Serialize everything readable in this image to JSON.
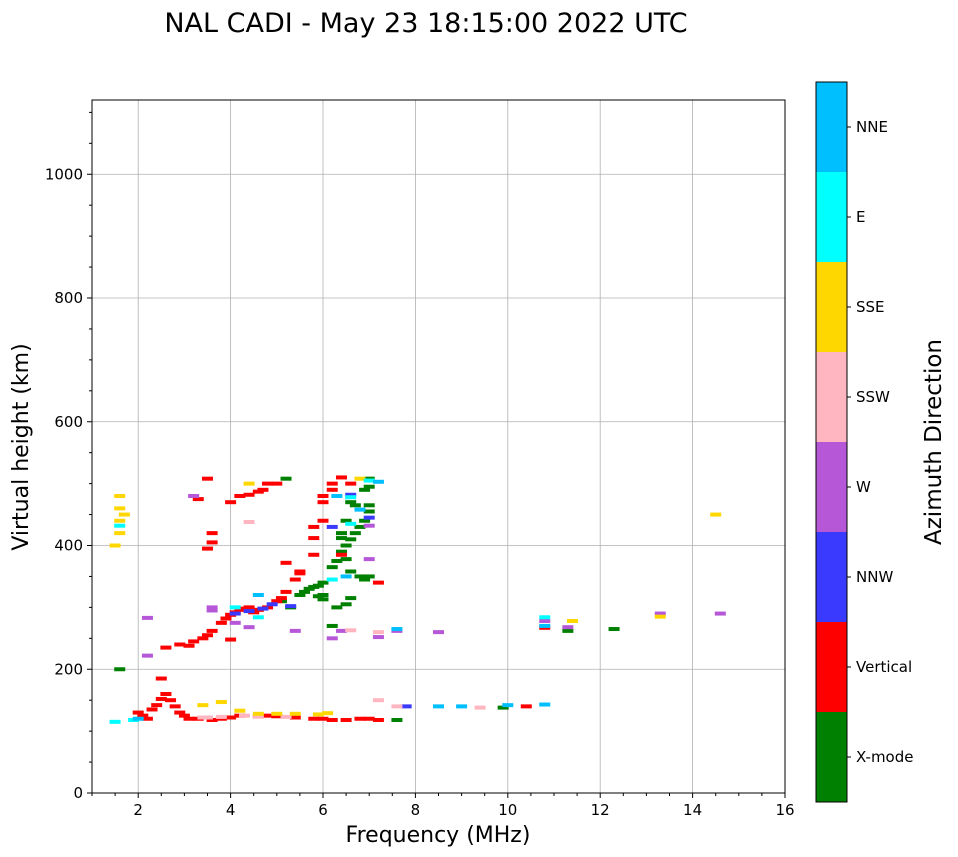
{
  "chart_data": {
    "type": "scatter",
    "title": "NAL CADI - May 23 18:15:00 2022 UTC",
    "xlabel": "Frequency (MHz)",
    "ylabel": "Virtual height (km)",
    "xlim": [
      1,
      16
    ],
    "ylim": [
      0,
      1120
    ],
    "xticks": [
      2,
      4,
      6,
      8,
      10,
      12,
      14,
      16
    ],
    "yticks": [
      0,
      200,
      400,
      600,
      800,
      1000
    ],
    "grid": true,
    "colorbar": {
      "title": "Azimuth Direction",
      "categories": [
        "X-mode",
        "Vertical",
        "NNW",
        "W",
        "SSW",
        "SSE",
        "E",
        "NNE"
      ],
      "colors": [
        "#008000",
        "#ff0000",
        "#3a3aff",
        "#b657d8",
        "#ffb6c1",
        "#ffd700",
        "#00ffff",
        "#00bfff"
      ]
    },
    "series": [
      {
        "name": "X-mode",
        "points": [
          [
            1.6,
            200
          ],
          [
            5.2,
            508
          ],
          [
            5.5,
            320
          ],
          [
            5.6,
            325
          ],
          [
            5.7,
            330
          ],
          [
            5.8,
            333
          ],
          [
            5.9,
            335
          ],
          [
            6.0,
            340
          ],
          [
            5.3,
            300
          ],
          [
            5.1,
            310
          ],
          [
            6.2,
            365
          ],
          [
            6.3,
            375
          ],
          [
            6.4,
            390
          ],
          [
            6.5,
            400
          ],
          [
            6.6,
            410
          ],
          [
            6.7,
            420
          ],
          [
            6.8,
            430
          ],
          [
            6.9,
            440
          ],
          [
            7.0,
            455
          ],
          [
            6.9,
            490
          ],
          [
            7.0,
            495
          ],
          [
            7.0,
            508
          ],
          [
            6.6,
            470
          ],
          [
            6.5,
            440
          ],
          [
            6.4,
            420
          ],
          [
            6.3,
            300
          ],
          [
            6.5,
            305
          ],
          [
            6.6,
            315
          ],
          [
            6.8,
            350
          ],
          [
            6.9,
            345
          ],
          [
            7.6,
            118
          ],
          [
            7.0,
            350
          ],
          [
            6.2,
            270
          ],
          [
            6.0,
            320
          ],
          [
            5.9,
            318
          ],
          [
            6.6,
            358
          ],
          [
            6.5,
            378
          ],
          [
            6.4,
            412
          ],
          [
            7.0,
            465
          ],
          [
            6.7,
            465
          ],
          [
            9.9,
            138
          ],
          [
            11.3,
            262
          ],
          [
            12.3,
            265
          ],
          [
            6.0,
            313
          ]
        ]
      },
      {
        "name": "Vertical",
        "points": [
          [
            2.0,
            130
          ],
          [
            2.1,
            125
          ],
          [
            2.2,
            120
          ],
          [
            2.3,
            135
          ],
          [
            2.4,
            142
          ],
          [
            2.5,
            152
          ],
          [
            2.6,
            160
          ],
          [
            2.7,
            150
          ],
          [
            2.8,
            140
          ],
          [
            2.9,
            130
          ],
          [
            3.0,
            125
          ],
          [
            3.1,
            120
          ],
          [
            3.3,
            120
          ],
          [
            3.6,
            118
          ],
          [
            3.8,
            120
          ],
          [
            4.0,
            122
          ],
          [
            4.2,
            125
          ],
          [
            4.6,
            124
          ],
          [
            4.8,
            125
          ],
          [
            5.0,
            124
          ],
          [
            5.4,
            122
          ],
          [
            5.8,
            120
          ],
          [
            6.0,
            120
          ],
          [
            6.2,
            118
          ],
          [
            6.5,
            118
          ],
          [
            6.8,
            120
          ],
          [
            7.0,
            120
          ],
          [
            7.2,
            118
          ],
          [
            2.5,
            185
          ],
          [
            2.6,
            235
          ],
          [
            2.9,
            240
          ],
          [
            3.1,
            238
          ],
          [
            3.2,
            245
          ],
          [
            3.4,
            250
          ],
          [
            3.5,
            255
          ],
          [
            3.6,
            262
          ],
          [
            3.8,
            275
          ],
          [
            3.9,
            282
          ],
          [
            4.0,
            288
          ],
          [
            4.1,
            292
          ],
          [
            4.2,
            296
          ],
          [
            4.3,
            298
          ],
          [
            4.4,
            300
          ],
          [
            4.5,
            292
          ],
          [
            4.6,
            296
          ],
          [
            4.8,
            300
          ],
          [
            5.0,
            310
          ],
          [
            5.1,
            315
          ],
          [
            5.2,
            325
          ],
          [
            5.4,
            345
          ],
          [
            5.2,
            372
          ],
          [
            5.5,
            358
          ],
          [
            5.8,
            385
          ],
          [
            5.8,
            412
          ],
          [
            5.8,
            430
          ],
          [
            6.0,
            440
          ],
          [
            6.0,
            470
          ],
          [
            6.0,
            480
          ],
          [
            6.2,
            500
          ],
          [
            6.2,
            490
          ],
          [
            6.4,
            510
          ],
          [
            6.6,
            500
          ],
          [
            3.6,
            420
          ],
          [
            3.5,
            395
          ],
          [
            3.6,
            405
          ],
          [
            4.0,
            470
          ],
          [
            4.2,
            480
          ],
          [
            4.4,
            482
          ],
          [
            4.6,
            487
          ],
          [
            4.7,
            490
          ],
          [
            4.8,
            500
          ],
          [
            5.0,
            500
          ],
          [
            3.5,
            508
          ],
          [
            3.3,
            475
          ],
          [
            7.2,
            340
          ],
          [
            6.4,
            385
          ],
          [
            10.8,
            267
          ],
          [
            10.4,
            140
          ],
          [
            4.0,
            248
          ],
          [
            5.5,
            355
          ]
        ]
      },
      {
        "name": "NNW",
        "points": [
          [
            4.1,
            290
          ],
          [
            4.4,
            294
          ],
          [
            4.7,
            298
          ],
          [
            4.9,
            305
          ],
          [
            5.3,
            302
          ],
          [
            6.2,
            430
          ],
          [
            7.0,
            445
          ],
          [
            6.6,
            482
          ],
          [
            7.8,
            140
          ]
        ]
      },
      {
        "name": "W",
        "points": [
          [
            3.2,
            480
          ],
          [
            3.6,
            295
          ],
          [
            4.4,
            268
          ],
          [
            4.1,
            275
          ],
          [
            5.4,
            262
          ],
          [
            6.2,
            250
          ],
          [
            6.4,
            262
          ],
          [
            7.0,
            378
          ],
          [
            7.0,
            432
          ],
          [
            8.5,
            260
          ],
          [
            7.6,
            262
          ],
          [
            14.6,
            290
          ],
          [
            13.3,
            290
          ],
          [
            11.3,
            268
          ],
          [
            10.8,
            278
          ],
          [
            7.2,
            252
          ],
          [
            2.2,
            283
          ],
          [
            2.2,
            222
          ],
          [
            3.6,
            300
          ]
        ]
      },
      {
        "name": "SSW",
        "points": [
          [
            3.5,
            122
          ],
          [
            3.8,
            123
          ],
          [
            4.3,
            125
          ],
          [
            4.6,
            124
          ],
          [
            5.2,
            123
          ],
          [
            7.2,
            150
          ],
          [
            7.6,
            140
          ],
          [
            9.4,
            138
          ],
          [
            7.2,
            260
          ],
          [
            6.6,
            263
          ],
          [
            4.4,
            438
          ],
          [
            3.4,
            122
          ]
        ]
      },
      {
        "name": "SSE",
        "points": [
          [
            1.6,
            480
          ],
          [
            1.6,
            460
          ],
          [
            1.6,
            440
          ],
          [
            1.6,
            420
          ],
          [
            1.5,
            400
          ],
          [
            3.4,
            142
          ],
          [
            3.8,
            147
          ],
          [
            4.2,
            133
          ],
          [
            4.6,
            128
          ],
          [
            5.0,
            128
          ],
          [
            5.4,
            128
          ],
          [
            5.9,
            127
          ],
          [
            6.1,
            129
          ],
          [
            14.5,
            450
          ],
          [
            13.3,
            285
          ],
          [
            11.4,
            278
          ],
          [
            6.8,
            508
          ],
          [
            4.4,
            500
          ],
          [
            1.7,
            450
          ]
        ]
      },
      {
        "name": "E",
        "points": [
          [
            1.6,
            432
          ],
          [
            1.5,
            115
          ],
          [
            1.9,
            118
          ],
          [
            6.6,
            435
          ],
          [
            7.0,
            505
          ],
          [
            6.2,
            345
          ],
          [
            4.1,
            300
          ],
          [
            6.6,
            478
          ],
          [
            4.6,
            284
          ],
          [
            10.8,
            284
          ]
        ]
      },
      {
        "name": "NNE",
        "points": [
          [
            7.2,
            503
          ],
          [
            4.6,
            320
          ],
          [
            6.8,
            458
          ],
          [
            7.6,
            265
          ],
          [
            8.5,
            140
          ],
          [
            9.0,
            140
          ],
          [
            10.0,
            142
          ],
          [
            10.8,
            143
          ],
          [
            10.8,
            270
          ],
          [
            6.5,
            350
          ],
          [
            2.0,
            120
          ],
          [
            6.3,
            480
          ]
        ]
      }
    ]
  }
}
